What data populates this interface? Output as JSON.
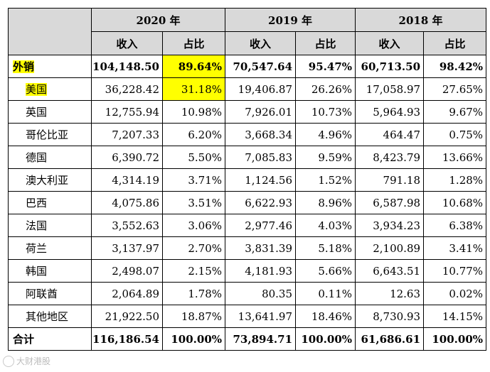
{
  "header": {
    "years": [
      "2020 年",
      "2019 年",
      "2018 年"
    ],
    "sub": [
      "收入",
      "占比",
      "收入",
      "占比",
      "收入",
      "占比"
    ]
  },
  "rows": [
    {
      "name": "外销",
      "v": [
        "104,148.50",
        "89.64%",
        "70,547.64",
        "95.47%",
        "60,713.50",
        "98.42%"
      ]
    },
    {
      "name": "美国",
      "v": [
        "36,228.42",
        "31.18%",
        "19,406.87",
        "26.26%",
        "17,058.97",
        "27.65%"
      ]
    },
    {
      "name": "英国",
      "v": [
        "12,755.94",
        "10.98%",
        "7,926.01",
        "10.73%",
        "5,964.93",
        "9.67%"
      ]
    },
    {
      "name": "哥伦比亚",
      "v": [
        "7,207.33",
        "6.20%",
        "3,668.34",
        "4.96%",
        "464.47",
        "0.75%"
      ]
    },
    {
      "name": "德国",
      "v": [
        "6,390.72",
        "5.50%",
        "7,085.83",
        "9.59%",
        "8,423.79",
        "13.66%"
      ]
    },
    {
      "name": "澳大利亚",
      "v": [
        "4,314.19",
        "3.71%",
        "1,124.56",
        "1.52%",
        "791.18",
        "1.28%"
      ]
    },
    {
      "name": "巴西",
      "v": [
        "4,075.86",
        "3.51%",
        "6,622.93",
        "8.96%",
        "6,587.98",
        "10.68%"
      ]
    },
    {
      "name": "法国",
      "v": [
        "3,552.63",
        "3.06%",
        "2,977.46",
        "4.03%",
        "3,934.23",
        "6.38%"
      ]
    },
    {
      "name": "荷兰",
      "v": [
        "3,137.97",
        "2.70%",
        "3,831.39",
        "5.18%",
        "2,100.89",
        "3.41%"
      ]
    },
    {
      "name": "韩国",
      "v": [
        "2,498.07",
        "2.15%",
        "4,181.93",
        "5.66%",
        "6,643.51",
        "10.77%"
      ]
    },
    {
      "name": "阿联酋",
      "v": [
        "2,064.89",
        "1.78%",
        "80.35",
        "0.11%",
        "12.63",
        "0.02%"
      ]
    },
    {
      "name": "其他地区",
      "v": [
        "21,922.50",
        "18.87%",
        "13,641.97",
        "18.46%",
        "8,730.93",
        "14.15%"
      ]
    },
    {
      "name": "合计",
      "v": [
        "116,186.54",
        "100.00%",
        "73,894.71",
        "100.00%",
        "61,686.61",
        "100.00%"
      ]
    }
  ],
  "watermark": "大财港股",
  "highlight_color": "#ffff00"
}
